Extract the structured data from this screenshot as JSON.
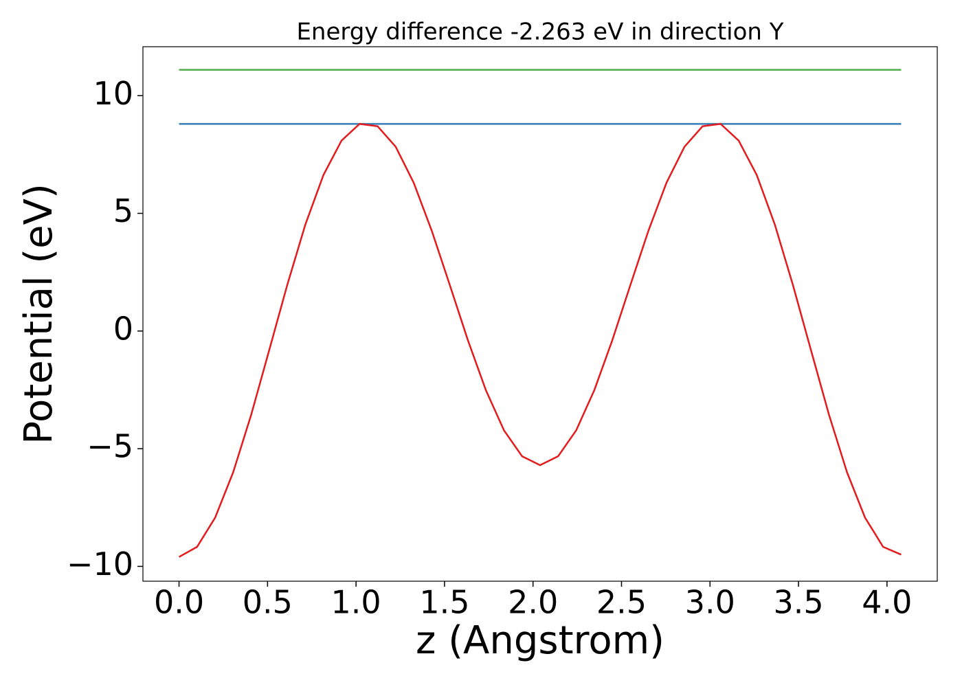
{
  "chart_data": {
    "type": "line",
    "title": "Energy difference -2.263 eV in direction Y",
    "x_label": "z (Angstrom)",
    "y_label": "Potential (eV)",
    "xlim": [
      -0.204,
      4.284
    ],
    "ylim": [
      -10.63,
      12.08
    ],
    "xticks": [
      {
        "value": 0,
        "label": "0.0"
      },
      {
        "value": 0.5,
        "label": "0.5"
      },
      {
        "value": 1,
        "label": "1.0"
      },
      {
        "value": 1.5,
        "label": "1.5"
      },
      {
        "value": 2,
        "label": "2.0"
      },
      {
        "value": 2.5,
        "label": "2.5"
      },
      {
        "value": 3,
        "label": "3.0"
      },
      {
        "value": 3.5,
        "label": "3.5"
      },
      {
        "value": 4,
        "label": "4.0"
      }
    ],
    "yticks": [
      {
        "value": -10,
        "label": "−10"
      },
      {
        "value": -5,
        "label": "−5"
      },
      0,
      5,
      10
    ],
    "grid": false,
    "series": [
      {
        "color": "#4daf4a",
        "x": [
          0,
          4.08
        ],
        "values": [
          11.1,
          11.1
        ]
      },
      {
        "color": "#377eb8",
        "x": [
          0,
          4.08
        ],
        "values": [
          8.8,
          8.8
        ]
      },
      {
        "color": "#e41a1c",
        "x": [
          0,
          0.102,
          0.204,
          0.306,
          0.408,
          0.51,
          0.612,
          0.714,
          0.816,
          0.918,
          1.02,
          1.122,
          1.224,
          1.326,
          1.428,
          1.53,
          1.632,
          1.734,
          1.836,
          1.938,
          2.04,
          2.142,
          2.244,
          2.346,
          2.448,
          2.55,
          2.652,
          2.754,
          2.856,
          2.958,
          3.06,
          3.162,
          3.264,
          3.366,
          3.468,
          3.57,
          3.672,
          3.774,
          3.876,
          3.978,
          4.08
        ],
        "values": [
          -9.6,
          -9.17,
          -7.93,
          -6.0,
          -3.55,
          -0.8,
          1.97,
          4.53,
          6.63,
          8.09,
          8.8,
          8.7,
          7.83,
          6.3,
          4.26,
          1.95,
          -0.39,
          -2.52,
          -4.22,
          -5.32,
          -5.7,
          -5.32,
          -4.22,
          -2.52,
          -0.39,
          1.95,
          4.26,
          6.3,
          7.83,
          8.7,
          8.8,
          8.09,
          6.63,
          4.53,
          1.97,
          -0.8,
          -3.55,
          -6.0,
          -7.93,
          -9.17,
          -9.5
        ]
      }
    ]
  }
}
